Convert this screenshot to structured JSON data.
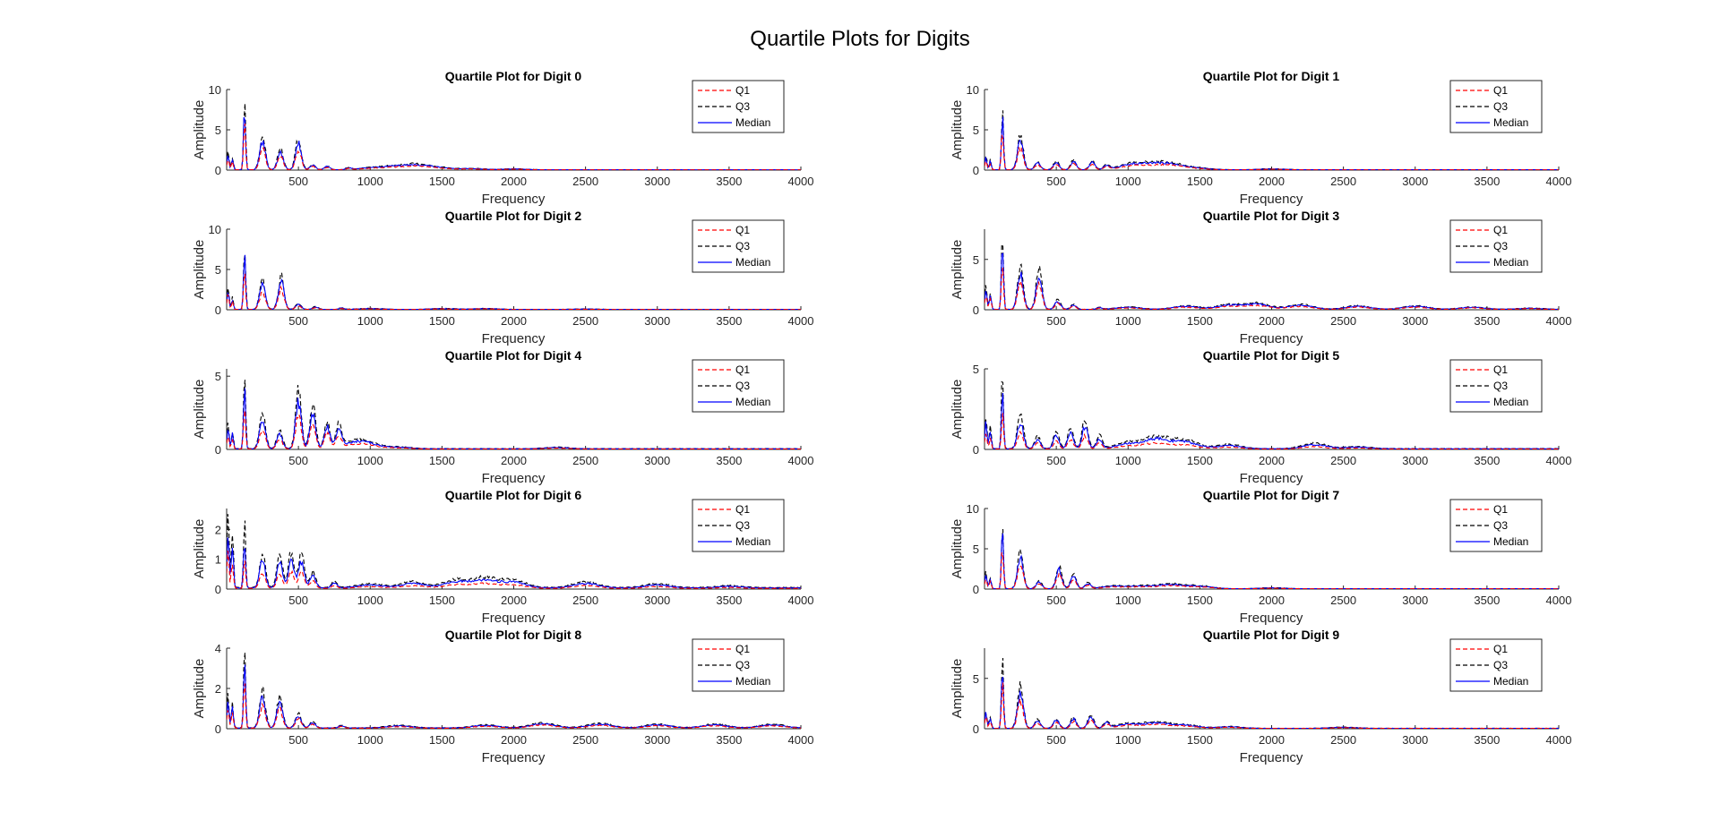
{
  "figure_title": "Quartile Plots for Digits",
  "chart_data": [
    {
      "type": "line",
      "title": "Quartile Plot for Digit 0",
      "xlabel": "Frequency",
      "ylabel": "Amplitude",
      "xlim": [
        0,
        4000
      ],
      "ylim": [
        0,
        10
      ],
      "xticks": [
        500,
        1000,
        1500,
        2000,
        2500,
        3000,
        3500,
        4000
      ],
      "yticks": [
        0,
        5,
        10
      ],
      "legend_position": "top-right",
      "peaks": [
        [
          10,
          1.8
        ],
        [
          40,
          1.3
        ],
        [
          125,
          7.5
        ],
        [
          250,
          3.4
        ],
        [
          375,
          2.2
        ],
        [
          500,
          3.2
        ],
        [
          600,
          0.6
        ],
        [
          700,
          0.4
        ],
        [
          850,
          0.2
        ],
        [
          1000,
          0.2
        ],
        [
          1150,
          0.3
        ],
        [
          1300,
          0.5
        ],
        [
          1450,
          0.3
        ],
        [
          1700,
          0.15
        ],
        [
          2000,
          0.1
        ]
      ],
      "series": [
        {
          "name": "Q1",
          "color": "#ff0000",
          "dash": "dashed",
          "scale": 0.75
        },
        {
          "name": "Q3",
          "color": "#000000",
          "dash": "dashed",
          "scale": 1.18
        },
        {
          "name": "Median",
          "color": "#0000ff",
          "dash": "solid",
          "scale": 1.0
        }
      ]
    },
    {
      "type": "line",
      "title": "Quartile Plot for Digit 1",
      "xlabel": "Frequency",
      "ylabel": "Amplitude",
      "xlim": [
        0,
        4000
      ],
      "ylim": [
        0,
        10
      ],
      "xticks": [
        500,
        1000,
        1500,
        2000,
        2500,
        3000,
        3500,
        4000
      ],
      "yticks": [
        0,
        5,
        10
      ],
      "legend_position": "top-right",
      "peaks": [
        [
          10,
          1.5
        ],
        [
          40,
          1.0
        ],
        [
          125,
          6.5
        ],
        [
          250,
          3.6
        ],
        [
          370,
          0.8
        ],
        [
          500,
          0.9
        ],
        [
          620,
          1.0
        ],
        [
          750,
          0.9
        ],
        [
          850,
          0.5
        ],
        [
          1000,
          0.4
        ],
        [
          1100,
          0.5
        ],
        [
          1250,
          0.6
        ],
        [
          1350,
          0.3
        ],
        [
          1500,
          0.15
        ],
        [
          2000,
          0.1
        ]
      ],
      "series": [
        {
          "name": "Q1",
          "color": "#ff0000",
          "dash": "dashed",
          "scale": 0.75
        },
        {
          "name": "Q3",
          "color": "#000000",
          "dash": "dashed",
          "scale": 1.18
        },
        {
          "name": "Median",
          "color": "#0000ff",
          "dash": "solid",
          "scale": 1.0
        }
      ]
    },
    {
      "type": "line",
      "title": "Quartile Plot for Digit 2",
      "xlabel": "Frequency",
      "ylabel": "Amplitude",
      "xlim": [
        0,
        4000
      ],
      "ylim": [
        0,
        10
      ],
      "xticks": [
        500,
        1000,
        1500,
        2000,
        2500,
        3000,
        3500,
        4000
      ],
      "yticks": [
        0,
        5,
        10
      ],
      "legend_position": "top-right",
      "peaks": [
        [
          10,
          2.4
        ],
        [
          40,
          1.2
        ],
        [
          125,
          7.0
        ],
        [
          250,
          3.0
        ],
        [
          380,
          3.4
        ],
        [
          500,
          0.6
        ],
        [
          620,
          0.3
        ],
        [
          800,
          0.15
        ],
        [
          1000,
          0.1
        ],
        [
          1500,
          0.1
        ],
        [
          1800,
          0.1
        ],
        [
          2500,
          0.05
        ]
      ],
      "series": [
        {
          "name": "Q1",
          "color": "#ff0000",
          "dash": "dashed",
          "scale": 0.75
        },
        {
          "name": "Q3",
          "color": "#000000",
          "dash": "dashed",
          "scale": 1.18
        },
        {
          "name": "Median",
          "color": "#0000ff",
          "dash": "solid",
          "scale": 1.0
        }
      ]
    },
    {
      "type": "line",
      "title": "Quartile Plot for Digit 3",
      "xlabel": "Frequency",
      "ylabel": "Amplitude",
      "xlim": [
        0,
        4000
      ],
      "ylim": [
        0,
        8
      ],
      "xticks": [
        500,
        1000,
        1500,
        2000,
        2500,
        3000,
        3500,
        4000
      ],
      "yticks": [
        0,
        5
      ],
      "legend_position": "top-right",
      "peaks": [
        [
          10,
          2.0
        ],
        [
          40,
          1.4
        ],
        [
          125,
          6.8
        ],
        [
          250,
          3.5
        ],
        [
          380,
          3.5
        ],
        [
          510,
          0.8
        ],
        [
          620,
          0.4
        ],
        [
          800,
          0.15
        ],
        [
          1000,
          0.2
        ],
        [
          1400,
          0.3
        ],
        [
          1700,
          0.4
        ],
        [
          1900,
          0.5
        ],
        [
          2200,
          0.4
        ],
        [
          2600,
          0.3
        ],
        [
          3000,
          0.3
        ],
        [
          3400,
          0.2
        ],
        [
          3800,
          0.1
        ]
      ],
      "series": [
        {
          "name": "Q1",
          "color": "#ff0000",
          "dash": "dashed",
          "scale": 0.75
        },
        {
          "name": "Q3",
          "color": "#000000",
          "dash": "dashed",
          "scale": 1.18
        },
        {
          "name": "Median",
          "color": "#0000ff",
          "dash": "solid",
          "scale": 1.0
        }
      ]
    },
    {
      "type": "line",
      "title": "Quartile Plot for Digit 4",
      "xlabel": "Frequency",
      "ylabel": "Amplitude",
      "xlim": [
        0,
        4000
      ],
      "ylim": [
        0,
        5.5
      ],
      "xticks": [
        500,
        1000,
        1500,
        2000,
        2500,
        3000,
        3500,
        4000
      ],
      "yticks": [
        0,
        5
      ],
      "legend_position": "top-right",
      "peaks": [
        [
          10,
          1.3
        ],
        [
          40,
          1.0
        ],
        [
          125,
          4.3
        ],
        [
          250,
          2.0
        ],
        [
          370,
          1.0
        ],
        [
          500,
          3.2
        ],
        [
          600,
          2.4
        ],
        [
          700,
          1.5
        ],
        [
          780,
          1.2
        ],
        [
          900,
          0.4
        ],
        [
          1000,
          0.2
        ],
        [
          1200,
          0.1
        ],
        [
          2300,
          0.08
        ]
      ],
      "series": [
        {
          "name": "Q1",
          "color": "#ff0000",
          "dash": "dashed",
          "scale": 0.7
        },
        {
          "name": "Q3",
          "color": "#000000",
          "dash": "dashed",
          "scale": 1.25
        },
        {
          "name": "Median",
          "color": "#0000ff",
          "dash": "solid",
          "scale": 1.0
        }
      ]
    },
    {
      "type": "line",
      "title": "Quartile Plot for Digit 5",
      "xlabel": "Frequency",
      "ylabel": "Amplitude",
      "xlim": [
        0,
        4000
      ],
      "ylim": [
        0,
        5
      ],
      "xticks": [
        500,
        1000,
        1500,
        2000,
        2500,
        3000,
        3500,
        4000
      ],
      "yticks": [
        0,
        5
      ],
      "legend_position": "top-right",
      "peaks": [
        [
          10,
          1.6
        ],
        [
          40,
          1.1
        ],
        [
          125,
          3.6
        ],
        [
          250,
          1.7
        ],
        [
          370,
          0.6
        ],
        [
          500,
          0.8
        ],
        [
          600,
          1.0
        ],
        [
          700,
          1.4
        ],
        [
          800,
          0.6
        ],
        [
          1000,
          0.3
        ],
        [
          1200,
          0.6
        ],
        [
          1400,
          0.4
        ],
        [
          1700,
          0.2
        ],
        [
          2300,
          0.25
        ],
        [
          2600,
          0.1
        ]
      ],
      "series": [
        {
          "name": "Q1",
          "color": "#ff0000",
          "dash": "dashed",
          "scale": 0.6
        },
        {
          "name": "Q3",
          "color": "#000000",
          "dash": "dashed",
          "scale": 1.3
        },
        {
          "name": "Median",
          "color": "#0000ff",
          "dash": "solid",
          "scale": 1.0
        }
      ]
    },
    {
      "type": "line",
      "title": "Quartile Plot for Digit 6",
      "xlabel": "Frequency",
      "ylabel": "Amplitude",
      "xlim": [
        0,
        4000
      ],
      "ylim": [
        0,
        2.7
      ],
      "xticks": [
        500,
        1000,
        1500,
        2000,
        2500,
        3000,
        3500,
        4000
      ],
      "yticks": [
        0,
        1,
        2
      ],
      "legend_position": "top-right",
      "peaks": [
        [
          10,
          2.0
        ],
        [
          40,
          1.5
        ],
        [
          125,
          1.7
        ],
        [
          250,
          0.9
        ],
        [
          370,
          0.8
        ],
        [
          450,
          0.9
        ],
        [
          520,
          0.9
        ],
        [
          600,
          0.4
        ],
        [
          750,
          0.15
        ],
        [
          1000,
          0.1
        ],
        [
          1300,
          0.15
        ],
        [
          1600,
          0.2
        ],
        [
          1800,
          0.25
        ],
        [
          2000,
          0.18
        ],
        [
          2500,
          0.15
        ],
        [
          3000,
          0.1
        ],
        [
          3500,
          0.05
        ]
      ],
      "series": [
        {
          "name": "Q1",
          "color": "#ff0000",
          "dash": "dashed",
          "scale": 0.6
        },
        {
          "name": "Q3",
          "color": "#000000",
          "dash": "dashed",
          "scale": 1.3
        },
        {
          "name": "Median",
          "color": "#0000ff",
          "dash": "solid",
          "scale": 1.0
        }
      ]
    },
    {
      "type": "line",
      "title": "Quartile Plot for Digit 7",
      "xlabel": "Frequency",
      "ylabel": "Amplitude",
      "xlim": [
        0,
        4000
      ],
      "ylim": [
        0,
        10
      ],
      "xticks": [
        500,
        1000,
        1500,
        2000,
        2500,
        3000,
        3500,
        4000
      ],
      "yticks": [
        0,
        5,
        10
      ],
      "legend_position": "top-right",
      "peaks": [
        [
          10,
          1.8
        ],
        [
          40,
          1.2
        ],
        [
          125,
          6.8
        ],
        [
          250,
          3.8
        ],
        [
          380,
          0.8
        ],
        [
          520,
          2.3
        ],
        [
          620,
          1.5
        ],
        [
          720,
          0.6
        ],
        [
          900,
          0.3
        ],
        [
          1100,
          0.3
        ],
        [
          1300,
          0.5
        ],
        [
          1500,
          0.3
        ],
        [
          2000,
          0.1
        ]
      ],
      "series": [
        {
          "name": "Q1",
          "color": "#ff0000",
          "dash": "dashed",
          "scale": 0.75
        },
        {
          "name": "Q3",
          "color": "#000000",
          "dash": "dashed",
          "scale": 1.18
        },
        {
          "name": "Median",
          "color": "#0000ff",
          "dash": "solid",
          "scale": 1.0
        }
      ]
    },
    {
      "type": "line",
      "title": "Quartile Plot for Digit 8",
      "xlabel": "Frequency",
      "ylabel": "Amplitude",
      "xlim": [
        0,
        4000
      ],
      "ylim": [
        0,
        4
      ],
      "xticks": [
        500,
        1000,
        1500,
        2000,
        2500,
        3000,
        3500,
        4000
      ],
      "yticks": [
        0,
        2,
        4
      ],
      "legend_position": "top-right",
      "peaks": [
        [
          10,
          1.3
        ],
        [
          40,
          1.0
        ],
        [
          125,
          3.1
        ],
        [
          250,
          1.5
        ],
        [
          370,
          1.3
        ],
        [
          500,
          0.6
        ],
        [
          600,
          0.25
        ],
        [
          800,
          0.1
        ],
        [
          1200,
          0.1
        ],
        [
          1800,
          0.12
        ],
        [
          2200,
          0.2
        ],
        [
          2600,
          0.18
        ],
        [
          3000,
          0.15
        ],
        [
          3400,
          0.15
        ],
        [
          3800,
          0.15
        ]
      ],
      "series": [
        {
          "name": "Q1",
          "color": "#ff0000",
          "dash": "dashed",
          "scale": 0.75
        },
        {
          "name": "Q3",
          "color": "#000000",
          "dash": "dashed",
          "scale": 1.2
        },
        {
          "name": "Median",
          "color": "#0000ff",
          "dash": "solid",
          "scale": 1.0
        }
      ]
    },
    {
      "type": "line",
      "title": "Quartile Plot for Digit 9",
      "xlabel": "Frequency",
      "ylabel": "Amplitude",
      "xlim": [
        0,
        4000
      ],
      "ylim": [
        0,
        8
      ],
      "xticks": [
        500,
        1000,
        1500,
        2000,
        2500,
        3000,
        3500,
        4000
      ],
      "yticks": [
        0,
        5
      ],
      "legend_position": "top-right",
      "peaks": [
        [
          10,
          1.5
        ],
        [
          40,
          1.0
        ],
        [
          125,
          5.8
        ],
        [
          250,
          3.6
        ],
        [
          370,
          0.7
        ],
        [
          500,
          0.8
        ],
        [
          620,
          0.9
        ],
        [
          740,
          1.2
        ],
        [
          850,
          0.5
        ],
        [
          1000,
          0.4
        ],
        [
          1200,
          0.5
        ],
        [
          1400,
          0.3
        ],
        [
          1700,
          0.15
        ],
        [
          2500,
          0.1
        ]
      ],
      "series": [
        {
          "name": "Q1",
          "color": "#ff0000",
          "dash": "dashed",
          "scale": 0.75
        },
        {
          "name": "Q3",
          "color": "#000000",
          "dash": "dashed",
          "scale": 1.18
        },
        {
          "name": "Median",
          "color": "#0000ff",
          "dash": "solid",
          "scale": 1.0
        }
      ]
    }
  ]
}
